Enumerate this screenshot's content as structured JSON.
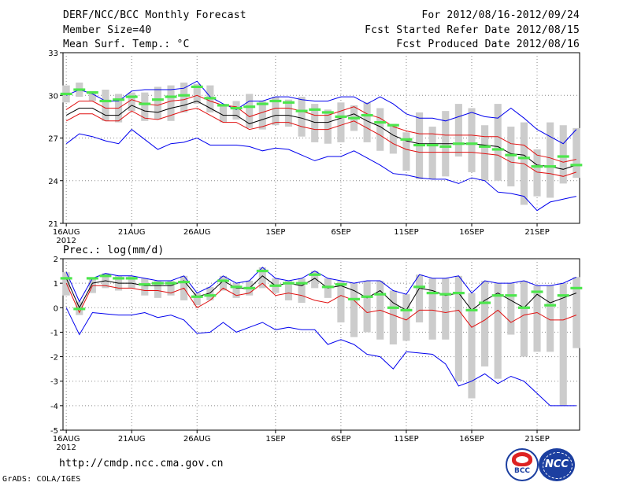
{
  "header": {
    "title": "DERF/NCC/BCC Monthly Forecast",
    "members": "Member Size=40",
    "variable": "Mean Surf. Temp.: °C",
    "period": "For 2012/08/16-2012/09/24",
    "started": "Fcst Started Refer Date 2012/08/15",
    "produced": "Fcst Produced Date 2012/08/16"
  },
  "footer": {
    "url": "http://cmdp.ncc.cma.gov.cn",
    "credit": "GrADS: COLA/IGES",
    "logo_left": "BCC",
    "logo_right": "NCC"
  },
  "colors": {
    "black": "#000000",
    "red": "#e01010",
    "blue": "#0000ee",
    "green": "#4de64d",
    "box": "#cccccc"
  },
  "chart_data": [
    {
      "type": "line",
      "title": "Mean Surf. Temp.: °C",
      "ylim": [
        21,
        33
      ],
      "yticks": [
        21,
        24,
        27,
        30,
        33
      ],
      "xticks": [
        {
          "day": 0,
          "label": "16AUG"
        },
        {
          "day": 5,
          "label": "21AUG"
        },
        {
          "day": 10,
          "label": "26AUG"
        },
        {
          "day": 16,
          "label": "1SEP"
        },
        {
          "day": 21,
          "label": "6SEP"
        },
        {
          "day": 26,
          "label": "11SEP"
        },
        {
          "day": 31,
          "label": "16SEP"
        },
        {
          "day": 36,
          "label": "21SEP"
        }
      ],
      "xtick_sub": "2012",
      "x_days": [
        0,
        1,
        2,
        3,
        4,
        5,
        6,
        7,
        8,
        9,
        10,
        11,
        12,
        13,
        14,
        15,
        16,
        17,
        18,
        19,
        20,
        21,
        22,
        23,
        24,
        25,
        26,
        27,
        28,
        29,
        30,
        31,
        32,
        33,
        34,
        35,
        36,
        37,
        38,
        39
      ],
      "series": [
        {
          "name": "ensemble max",
          "color": "blue",
          "values": [
            30.0,
            30.4,
            30.1,
            29.6,
            29.6,
            30.3,
            30.4,
            30.4,
            30.4,
            30.5,
            31.0,
            29.9,
            29.4,
            29.0,
            29.6,
            29.6,
            29.9,
            29.9,
            29.7,
            29.6,
            29.6,
            29.9,
            29.9,
            29.4,
            29.9,
            29.4,
            28.7,
            28.4,
            28.4,
            28.2,
            28.5,
            28.8,
            28.5,
            28.4,
            29.1,
            28.4,
            27.6,
            27.1,
            26.6,
            27.6
          ]
        },
        {
          "name": "upper spread",
          "color": "red",
          "values": [
            29.0,
            29.6,
            29.6,
            29.1,
            29.1,
            29.7,
            29.4,
            29.3,
            29.6,
            29.7,
            30.0,
            29.6,
            29.3,
            29.2,
            28.5,
            28.8,
            29.1,
            29.1,
            28.9,
            28.6,
            28.6,
            28.9,
            29.2,
            28.7,
            28.4,
            27.8,
            27.5,
            27.3,
            27.3,
            27.2,
            27.2,
            27.2,
            27.1,
            27.1,
            26.6,
            26.5,
            25.8,
            25.6,
            25.3,
            25.5
          ]
        },
        {
          "name": "ensemble mean",
          "color": "black",
          "values": [
            28.6,
            29.1,
            29.1,
            28.6,
            28.6,
            29.3,
            28.9,
            28.8,
            29.1,
            29.3,
            29.6,
            29.1,
            28.6,
            28.6,
            28.0,
            28.3,
            28.6,
            28.6,
            28.4,
            28.1,
            28.1,
            28.4,
            28.7,
            28.2,
            27.8,
            27.2,
            26.8,
            26.6,
            26.6,
            26.6,
            26.6,
            26.6,
            26.5,
            26.4,
            25.9,
            25.8,
            25.1,
            25.0,
            24.8,
            25.1
          ]
        },
        {
          "name": "lower spread",
          "color": "red",
          "values": [
            28.2,
            28.7,
            28.7,
            28.2,
            28.2,
            28.9,
            28.4,
            28.3,
            28.6,
            28.9,
            29.1,
            28.6,
            28.1,
            28.1,
            27.6,
            27.8,
            28.1,
            28.1,
            27.8,
            27.6,
            27.6,
            27.9,
            28.2,
            27.7,
            27.2,
            26.6,
            26.2,
            26.0,
            26.0,
            26.0,
            26.0,
            26.0,
            25.9,
            25.8,
            25.3,
            25.2,
            24.6,
            24.5,
            24.3,
            24.6
          ]
        },
        {
          "name": "ensemble min",
          "color": "blue",
          "values": [
            26.6,
            27.3,
            27.1,
            26.8,
            26.6,
            27.6,
            26.9,
            26.2,
            26.6,
            26.7,
            27.0,
            26.5,
            26.5,
            26.5,
            26.4,
            26.1,
            26.3,
            26.2,
            25.8,
            25.4,
            25.7,
            25.7,
            26.1,
            25.6,
            25.1,
            24.5,
            24.4,
            24.2,
            24.1,
            24.1,
            23.8,
            24.2,
            24.0,
            23.2,
            23.1,
            22.9,
            21.9,
            22.5,
            22.7,
            22.9
          ]
        }
      ],
      "bars": {
        "name": "forecast range",
        "low": [
          29.5,
          29.9,
          29.6,
          28.2,
          28.1,
          28.9,
          28.2,
          28.3,
          28.2,
          28.8,
          29.4,
          28.8,
          28.1,
          28.3,
          27.7,
          27.6,
          27.9,
          27.8,
          27.1,
          26.7,
          26.6,
          26.7,
          27.5,
          26.7,
          26.1,
          25.9,
          24.7,
          24.1,
          24.1,
          24.3,
          25.7,
          24.6,
          24.0,
          24.0,
          23.6,
          22.3,
          22.9,
          22.8,
          23.8,
          24.2
        ],
        "high": [
          30.7,
          30.9,
          30.3,
          30.4,
          30.1,
          30.2,
          30.2,
          30.6,
          30.7,
          30.9,
          30.8,
          30.7,
          29.4,
          29.6,
          30.1,
          29.6,
          29.9,
          29.7,
          29.9,
          29.4,
          29.0,
          29.5,
          29.3,
          29.5,
          29.1,
          28.0,
          27.4,
          28.8,
          27.8,
          28.9,
          29.4,
          29.1,
          27.9,
          29.4,
          27.8,
          28.1,
          26.2,
          28.1,
          27.9,
          27.7
        ]
      },
      "markers": {
        "name": "mode",
        "values": [
          30.1,
          30.4,
          30.2,
          29.6,
          29.7,
          29.9,
          29.4,
          29.7,
          29.9,
          30.0,
          30.6,
          29.8,
          29.3,
          29.1,
          29.2,
          29.4,
          29.6,
          29.5,
          28.9,
          29.0,
          28.8,
          28.5,
          28.4,
          28.6,
          28.1,
          27.9,
          26.9,
          26.5,
          26.5,
          26.4,
          26.6,
          26.6,
          26.4,
          26.2,
          25.8,
          25.6,
          25.0,
          25.0,
          25.7,
          25.1
        ]
      }
    },
    {
      "type": "line",
      "title": "Prec.: log(mm/d)",
      "ylim": [
        -5,
        2
      ],
      "yticks": [
        -5,
        -4,
        -3,
        -2,
        -1,
        0,
        1,
        2
      ],
      "xticks": [
        {
          "day": 0,
          "label": "16AUG"
        },
        {
          "day": 5,
          "label": "21AUG"
        },
        {
          "day": 10,
          "label": "26AUG"
        },
        {
          "day": 16,
          "label": "1SEP"
        },
        {
          "day": 21,
          "label": "6SEP"
        },
        {
          "day": 26,
          "label": "11SEP"
        },
        {
          "day": 31,
          "label": "16SEP"
        },
        {
          "day": 36,
          "label": "21SEP"
        }
      ],
      "xtick_sub": "2012",
      "x_days": [
        0,
        1,
        2,
        3,
        4,
        5,
        6,
        7,
        8,
        9,
        10,
        11,
        12,
        13,
        14,
        15,
        16,
        17,
        18,
        19,
        20,
        21,
        22,
        23,
        24,
        25,
        26,
        27,
        28,
        29,
        30,
        31,
        32,
        33,
        34,
        35,
        36,
        37,
        38,
        39
      ],
      "series": [
        {
          "name": "ensemble max",
          "color": "blue",
          "values": [
            1.45,
            0.25,
            1.2,
            1.4,
            1.3,
            1.3,
            1.2,
            1.1,
            1.1,
            1.3,
            0.6,
            0.85,
            1.3,
            1.0,
            1.1,
            1.65,
            1.2,
            1.1,
            1.2,
            1.5,
            1.2,
            1.1,
            1.0,
            1.1,
            1.1,
            0.7,
            0.55,
            1.35,
            1.2,
            1.2,
            1.3,
            0.6,
            1.1,
            1.0,
            1.0,
            1.1,
            0.9,
            0.9,
            1.0,
            1.25
          ]
        },
        {
          "name": "ensemble mean",
          "color": "black",
          "values": [
            1.2,
            0.0,
            1.0,
            1.1,
            1.0,
            1.0,
            0.9,
            0.9,
            0.9,
            1.1,
            0.45,
            0.6,
            1.1,
            0.8,
            0.8,
            1.3,
            0.9,
            1.0,
            0.9,
            1.2,
            0.8,
            0.9,
            0.7,
            0.4,
            0.7,
            0.2,
            -0.1,
            0.8,
            0.7,
            0.5,
            0.6,
            -0.1,
            0.3,
            0.6,
            0.3,
            0.0,
            0.55,
            0.2,
            0.4,
            0.6
          ]
        },
        {
          "name": "lower spread",
          "color": "red",
          "values": [
            1.0,
            -0.2,
            0.9,
            0.9,
            0.8,
            0.8,
            0.7,
            0.7,
            0.6,
            0.8,
            0.0,
            0.3,
            0.8,
            0.5,
            0.6,
            1.0,
            0.5,
            0.6,
            0.5,
            0.3,
            0.2,
            0.5,
            0.3,
            -0.2,
            -0.1,
            -0.3,
            -0.5,
            -0.1,
            -0.1,
            -0.2,
            -0.1,
            -0.8,
            -0.5,
            -0.1,
            -0.6,
            -0.3,
            -0.2,
            -0.5,
            -0.5,
            -0.3
          ]
        },
        {
          "name": "ensemble min",
          "color": "blue",
          "values": [
            0.0,
            -1.1,
            -0.2,
            -0.25,
            -0.3,
            -0.3,
            -0.2,
            -0.4,
            -0.3,
            -0.5,
            -1.05,
            -1.0,
            -0.6,
            -1.0,
            -0.8,
            -0.6,
            -0.9,
            -0.8,
            -0.9,
            -0.9,
            -1.5,
            -1.3,
            -1.5,
            -1.9,
            -2.0,
            -2.5,
            -1.8,
            -1.85,
            -1.9,
            -2.3,
            -3.2,
            -3.0,
            -2.7,
            -3.1,
            -2.8,
            -3.0,
            -3.5,
            -4.0,
            -4.0,
            -4.0
          ]
        }
      ],
      "bars": {
        "name": "forecast range",
        "low": [
          0.5,
          -0.3,
          0.6,
          0.8,
          0.7,
          0.8,
          0.5,
          0.4,
          0.5,
          0.3,
          0.1,
          0.3,
          0.7,
          0.4,
          0.5,
          0.8,
          0.6,
          0.3,
          0.2,
          0.8,
          0.4,
          -0.6,
          -1.2,
          -1.0,
          -1.3,
          -1.5,
          -1.35,
          -0.6,
          -1.3,
          -1.3,
          -3.0,
          -3.7,
          -2.4,
          -2.9,
          -1.1,
          -2.0,
          -1.8,
          -1.8,
          -4.0,
          -1.65
        ]
      },
      "markers": {
        "name": "mode",
        "values": [
          1.2,
          -0.05,
          1.2,
          1.3,
          1.2,
          1.2,
          0.95,
          1.0,
          1.0,
          1.05,
          0.45,
          0.5,
          1.1,
          0.85,
          0.8,
          1.5,
          0.9,
          1.0,
          1.0,
          1.35,
          0.85,
          0.95,
          0.35,
          0.45,
          0.55,
          0.0,
          -0.1,
          0.85,
          0.6,
          0.55,
          0.6,
          -0.1,
          0.2,
          0.5,
          0.5,
          0.0,
          0.65,
          0.1,
          0.5,
          0.8
        ]
      }
    }
  ]
}
